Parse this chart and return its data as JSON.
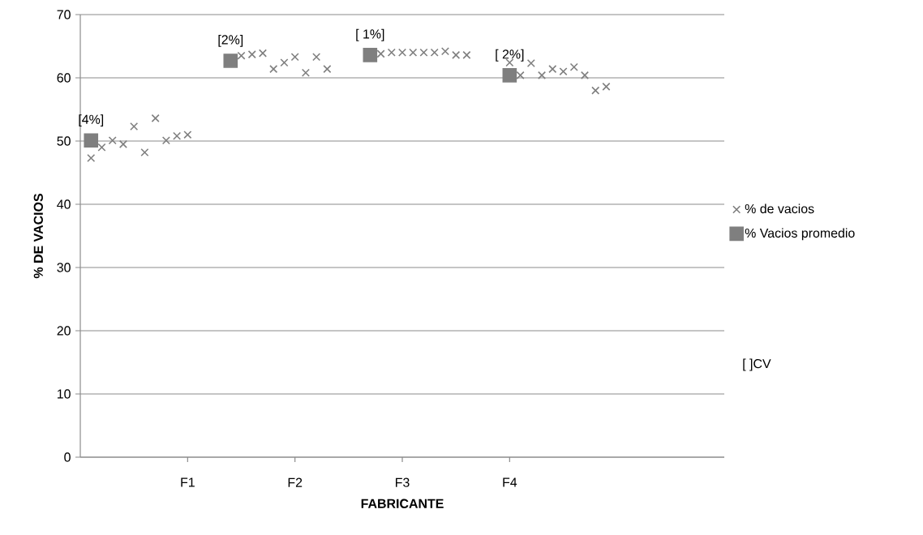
{
  "chart_data": {
    "type": "scatter",
    "xlabel": "FABRICANTE",
    "ylabel": "% DE VACIOS",
    "categories": [
      null,
      null,
      null,
      null,
      null,
      null,
      null,
      null,
      null,
      "F1",
      null,
      null,
      null,
      null,
      null,
      null,
      null,
      null,
      null,
      "F2",
      null,
      null,
      null,
      null,
      null,
      null,
      null,
      null,
      null,
      "F3",
      null,
      null,
      null,
      null,
      null,
      null,
      null,
      null,
      null,
      "F4",
      null,
      null,
      null,
      null,
      null,
      null,
      null,
      null,
      null,
      null,
      null,
      null,
      null,
      null,
      null,
      null,
      null,
      null,
      null
    ],
    "ylim": [
      0,
      70
    ],
    "yticks": [
      0,
      10,
      20,
      30,
      40,
      50,
      60,
      70
    ],
    "grid": "y",
    "legend": "right",
    "series": [
      {
        "name": "% de vacios",
        "color": "#7f7f7f",
        "marker": "cross",
        "values": [
          47.3,
          49.0,
          50.1,
          49.5,
          52.3,
          48.2,
          53.6,
          50.1,
          50.8,
          51.0,
          null,
          null,
          null,
          null,
          63.5,
          63.7,
          63.9,
          61.4,
          62.4,
          63.3,
          60.8,
          63.3,
          61.4,
          null,
          null,
          null,
          null,
          63.8,
          64.0,
          64.0,
          64.0,
          64.0,
          64.0,
          64.2,
          63.6,
          63.6,
          null,
          null,
          null,
          62.4,
          60.4,
          62.3,
          60.4,
          61.4,
          61.0,
          61.7,
          60.4,
          58.0,
          58.6,
          null,
          null,
          null,
          null,
          null,
          null,
          null,
          null,
          null,
          null
        ]
      },
      {
        "name": "% Vacios promedio",
        "color": "#7f7f7f",
        "marker": "square",
        "values": [
          50.1,
          null,
          null,
          null,
          null,
          null,
          null,
          null,
          null,
          null,
          null,
          null,
          null,
          62.7,
          null,
          null,
          null,
          null,
          null,
          null,
          null,
          null,
          null,
          null,
          null,
          null,
          63.6,
          null,
          null,
          null,
          null,
          null,
          null,
          null,
          null,
          null,
          null,
          null,
          null,
          60.4,
          null,
          null,
          null,
          null,
          null,
          null,
          null,
          null,
          null,
          null,
          null,
          null,
          null,
          null,
          null,
          null,
          null,
          null,
          null
        ]
      }
    ],
    "annotations": [
      {
        "text": "[4%]",
        "y": 50.1
      },
      {
        "text": "[2%]",
        "y": 62.7
      },
      {
        "text": "[ 1%]",
        "y": 63.6
      },
      {
        "text": "[ 2%]",
        "y": 60.4
      },
      "[ ]CV"
    ]
  }
}
